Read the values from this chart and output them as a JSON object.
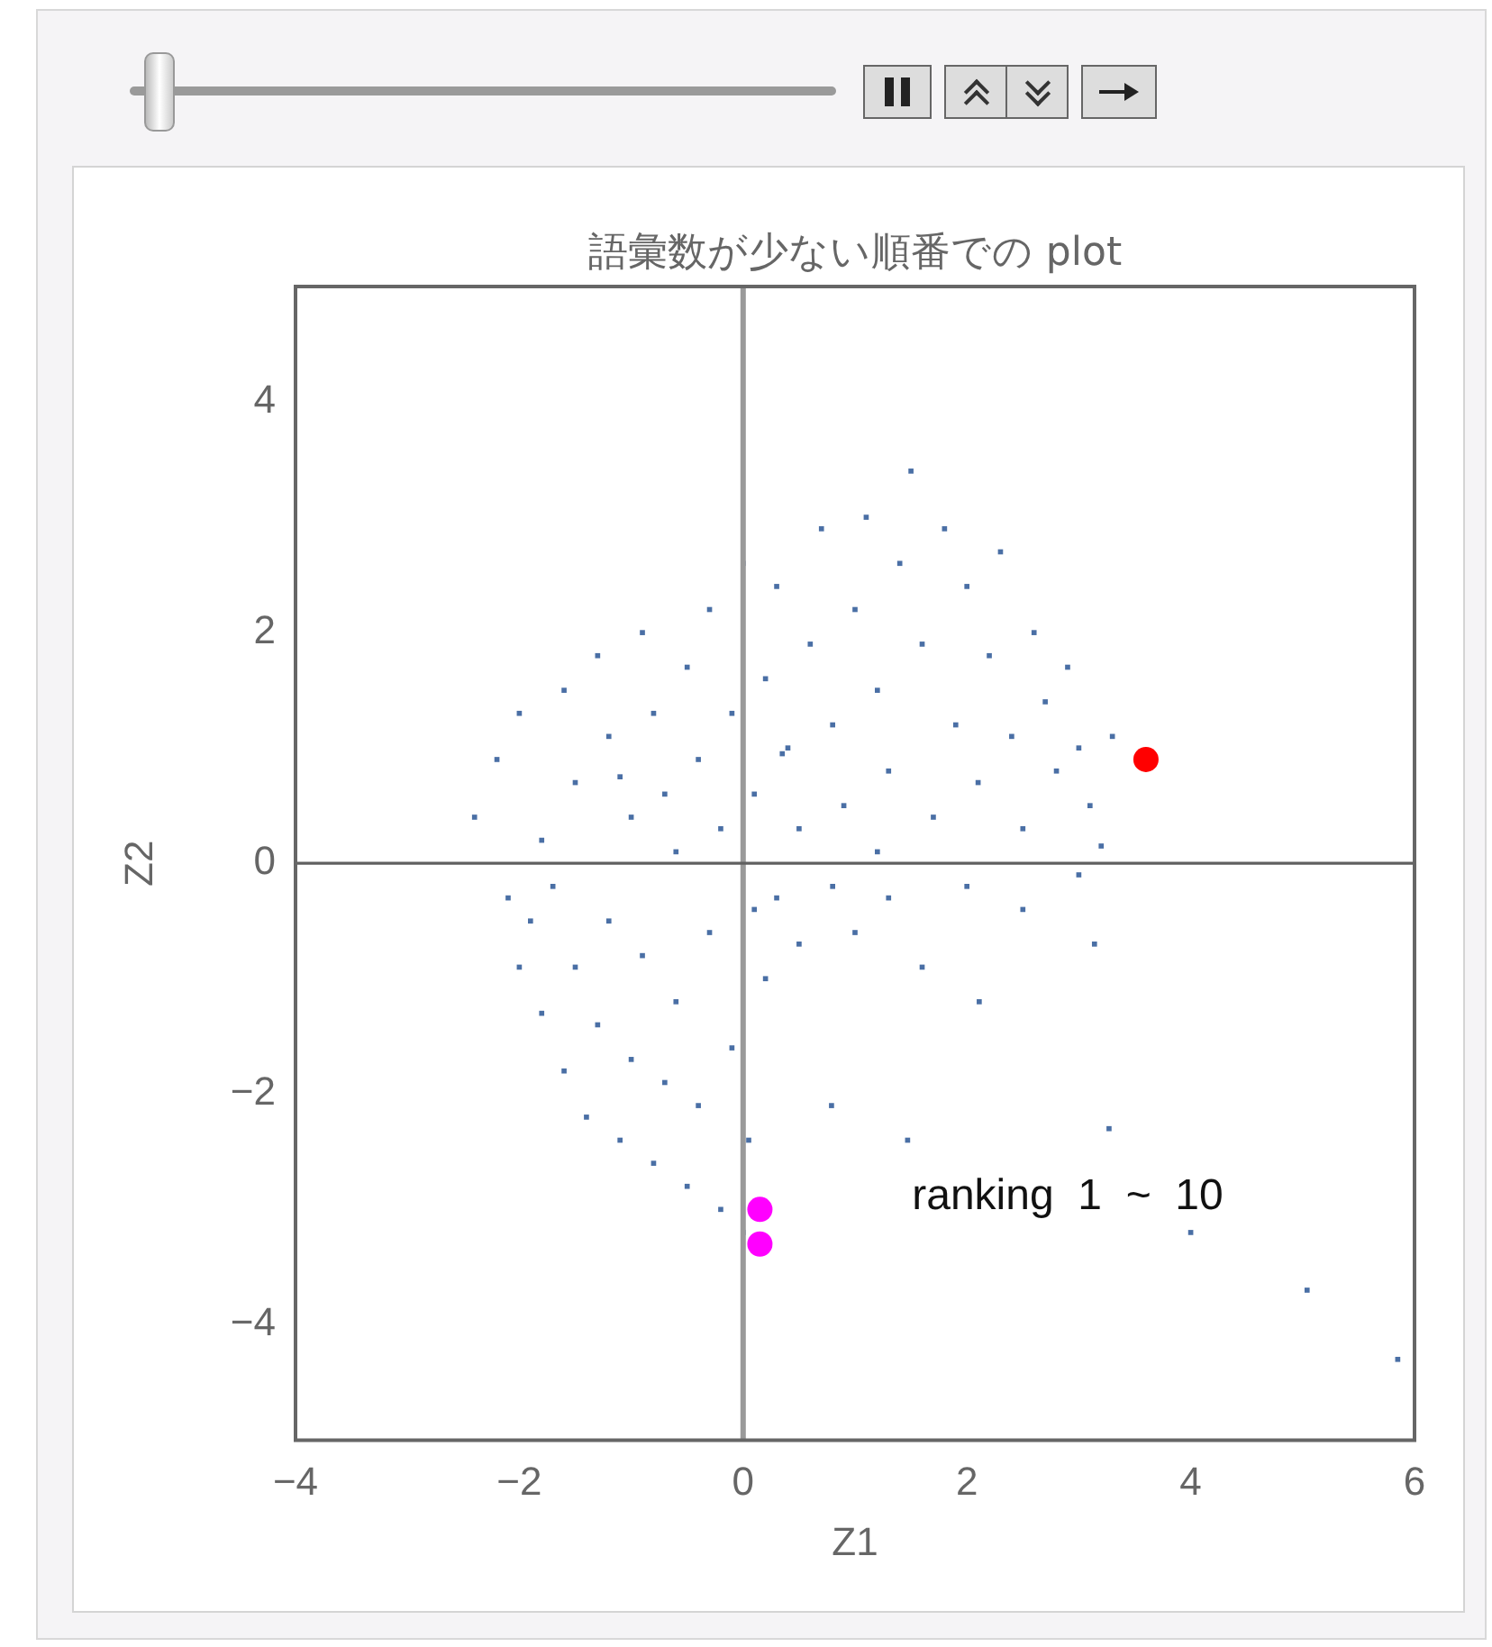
{
  "chart_data": {
    "type": "scatter",
    "title": "語彙数が少ない順番での plot",
    "xlabel": "Z1",
    "ylabel": "Z2",
    "xlim": [
      -4,
      6
    ],
    "ylim": [
      -5,
      5
    ],
    "xticks": [
      -4,
      -2,
      0,
      2,
      4,
      6
    ],
    "yticks": [
      -4,
      -2,
      0,
      2,
      4
    ],
    "grid": false,
    "legend": false,
    "ref_lines": [
      {
        "axis": "x",
        "value": 0,
        "color": "#9a9a9a"
      },
      {
        "axis": "y",
        "value": 0,
        "color": "#606060"
      }
    ],
    "annotations": [
      "ranking  1  ~  10"
    ],
    "series": [
      {
        "color": "#4a6fa5",
        "marker": "square",
        "x": [
          -2.4,
          -2.2,
          -2.0,
          -1.8,
          -1.6,
          -1.5,
          -1.3,
          -1.2,
          -1.0,
          -0.9,
          -0.8,
          -0.7,
          -0.5,
          -0.4,
          -0.3,
          -0.2,
          -0.1,
          0.0,
          0.1,
          0.2,
          0.3,
          0.4,
          0.5,
          0.6,
          0.7,
          0.8,
          0.9,
          1.0,
          1.1,
          1.2,
          1.3,
          1.4,
          1.5,
          1.6,
          1.7,
          1.8,
          1.9,
          2.0,
          2.1,
          2.2,
          2.3,
          2.4,
          2.5,
          2.6,
          2.7,
          2.8,
          2.9,
          3.0,
          3.1,
          3.3,
          3.2,
          1.2,
          -0.6,
          0.35,
          -1.1,
          -2.1,
          -2.0,
          -1.9,
          -1.8,
          -1.7,
          -1.6,
          -1.5,
          -1.4,
          -1.3,
          -1.2,
          -1.1,
          -1.0,
          -0.9,
          -0.8,
          -0.7,
          -0.6,
          -0.5,
          -0.4,
          -0.3,
          -0.2,
          -0.1,
          0.0,
          0.05,
          0.1,
          0.2,
          0.3,
          0.5,
          0.8,
          1.0,
          1.3,
          1.6,
          2.0,
          2.5,
          3.0,
          3.14,
          2.11,
          3.27,
          5.04,
          5.85,
          4.0,
          1.47,
          0.79
        ],
        "values": [
          0.4,
          0.9,
          1.3,
          0.2,
          1.5,
          0.7,
          1.8,
          1.1,
          0.4,
          2.0,
          1.3,
          0.6,
          1.7,
          0.9,
          2.2,
          0.3,
          1.3,
          2.6,
          0.6,
          1.6,
          2.4,
          1.0,
          0.3,
          1.9,
          2.9,
          1.2,
          0.5,
          2.2,
          3.0,
          1.5,
          0.8,
          2.6,
          3.4,
          1.9,
          0.4,
          2.9,
          1.2,
          2.4,
          0.7,
          1.8,
          2.7,
          1.1,
          0.3,
          2.0,
          1.4,
          0.8,
          1.7,
          1.0,
          0.5,
          1.1,
          0.15,
          0.1,
          0.1,
          0.95,
          0.75,
          -0.3,
          -0.9,
          -0.5,
          -1.3,
          -0.2,
          -1.8,
          -0.9,
          -2.2,
          -1.4,
          -0.5,
          -2.4,
          -1.7,
          -0.8,
          -2.6,
          -1.9,
          -1.2,
          -2.8,
          -2.1,
          -0.6,
          -3.0,
          -1.6,
          -3.2,
          -2.4,
          -0.4,
          -1.0,
          -0.3,
          -0.7,
          -0.2,
          -0.6,
          -0.3,
          -0.9,
          -0.2,
          -0.4,
          -0.1,
          -0.7,
          -1.2,
          -2.3,
          -3.7,
          -4.3,
          -3.2,
          -2.4,
          -2.1
        ]
      },
      {
        "color": "#ff0000",
        "marker": "circle",
        "x": [
          3.6
        ],
        "values": [
          0.9
        ]
      },
      {
        "color": "#ff00ff",
        "marker": "circle",
        "x": [
          0.15
        ],
        "values": [
          -3.0
        ]
      },
      {
        "color": "#ff00ff",
        "marker": "circle",
        "x": [
          0.15
        ],
        "values": [
          -3.3
        ]
      }
    ]
  }
}
